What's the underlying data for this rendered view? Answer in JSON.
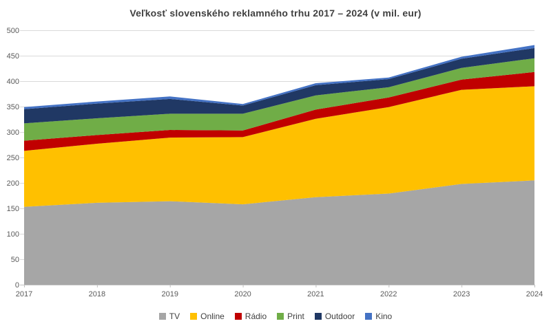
{
  "title": "Veľkosť slovenského reklamného trhu 2017 – 2024 (v mil. eur)",
  "chart_data": {
    "type": "area",
    "stacked": true,
    "title": "Veľkosť slovenského reklamného trhu 2017 – 2024 (v mil. eur)",
    "x_categories": [
      "2017",
      "2018",
      "2019",
      "2020",
      "2021",
      "2022",
      "2023",
      "2024"
    ],
    "series": [
      {
        "name": "TV",
        "color": "#A6A6A6",
        "values": [
          153,
          161,
          164,
          158,
          172,
          179,
          198,
          205
        ]
      },
      {
        "name": "Online",
        "color": "#FFC000",
        "values": [
          110,
          116,
          125,
          132,
          154,
          170,
          185,
          185
        ]
      },
      {
        "name": "Rádio",
        "color": "#C00000",
        "values": [
          20,
          17,
          15,
          13,
          18,
          19,
          20,
          28
        ]
      },
      {
        "name": "Print",
        "color": "#70AD47",
        "values": [
          34,
          33,
          32,
          33,
          28,
          20,
          23,
          27
        ]
      },
      {
        "name": "Outdoor",
        "color": "#203864",
        "values": [
          28,
          29,
          29,
          16,
          20,
          16,
          18,
          20
        ]
      },
      {
        "name": "Kino",
        "color": "#4472C4",
        "values": [
          4,
          4,
          5,
          3,
          4,
          3,
          4,
          6
        ]
      }
    ],
    "totals": [
      349,
      360,
      370,
      355,
      396,
      407,
      448,
      471
    ],
    "y_axis": {
      "min": 0,
      "max": 500,
      "step": 50,
      "ticks": [
        0,
        50,
        100,
        150,
        200,
        250,
        300,
        350,
        400,
        450,
        500
      ]
    },
    "grid": true,
    "legend_position": "bottom",
    "colors": {
      "title_text": "#404040",
      "axis_text": "#595959",
      "gridline": "#D9D9D9",
      "axis_line": "#BFBFBF",
      "background": "#FFFFFF"
    }
  }
}
